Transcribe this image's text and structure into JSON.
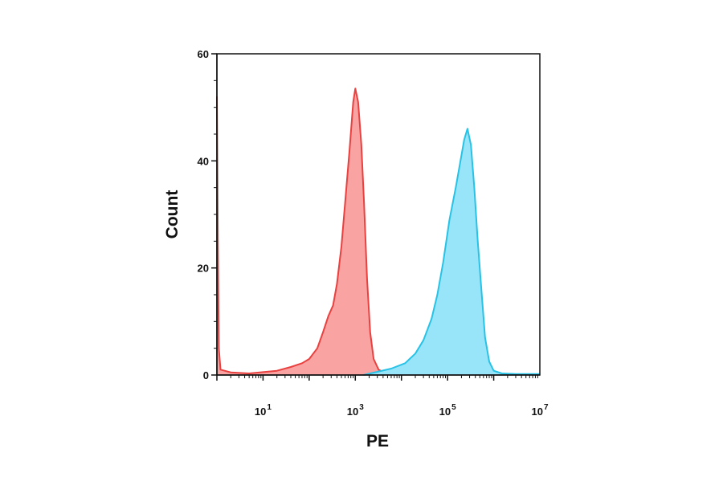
{
  "chart_data": {
    "type": "area",
    "xlabel": "PE",
    "ylabel": "Count",
    "x_scale": "log10",
    "xlim": [
      1,
      10000000
    ],
    "ylim": [
      0,
      60
    ],
    "grid": false,
    "legend": "none",
    "y_ticks": [
      {
        "value": 0,
        "label": "0"
      },
      {
        "value": 20,
        "label": "20"
      },
      {
        "value": 40,
        "label": "40"
      },
      {
        "value": 60,
        "label": "60"
      }
    ],
    "x_ticks": [
      {
        "value": 10,
        "base": "10",
        "exp": "1"
      },
      {
        "value": 1000,
        "base": "10",
        "exp": "3"
      },
      {
        "value": 100000,
        "base": "10",
        "exp": "5"
      },
      {
        "value": 10000000,
        "base": "10",
        "exp": "7"
      }
    ],
    "series": [
      {
        "fill": "#f9a3a3",
        "stroke": "#e8413f",
        "points": [
          [
            1.0,
            52
          ],
          [
            1.05,
            25
          ],
          [
            1.1,
            5
          ],
          [
            1.2,
            1
          ],
          [
            2,
            0.5
          ],
          [
            5,
            0.3
          ],
          [
            20,
            0.8
          ],
          [
            40,
            1.5
          ],
          [
            70,
            2.2
          ],
          [
            100,
            3.0
          ],
          [
            150,
            5.0
          ],
          [
            200,
            8.0
          ],
          [
            260,
            11.0
          ],
          [
            330,
            13.0
          ],
          [
            400,
            17.0
          ],
          [
            500,
            24.0
          ],
          [
            600,
            32.0
          ],
          [
            750,
            42.0
          ],
          [
            900,
            51.0
          ],
          [
            1000,
            53.5
          ],
          [
            1150,
            51.0
          ],
          [
            1350,
            43.0
          ],
          [
            1550,
            32.0
          ],
          [
            1800,
            18.0
          ],
          [
            2100,
            8.0
          ],
          [
            2500,
            3.0
          ],
          [
            3200,
            1.0
          ],
          [
            4500,
            0.3
          ],
          [
            8000,
            0.0
          ]
        ]
      },
      {
        "fill": "#98e5f9",
        "stroke": "#28c2e6",
        "points": [
          [
            1500,
            0.0
          ],
          [
            3000,
            0.6
          ],
          [
            6000,
            1.2
          ],
          [
            12000,
            2.2
          ],
          [
            20000,
            4.0
          ],
          [
            30000,
            6.5
          ],
          [
            45000,
            10.5
          ],
          [
            60000,
            15.0
          ],
          [
            80000,
            21.0
          ],
          [
            110000,
            29.0
          ],
          [
            150000,
            35.0
          ],
          [
            190000,
            40.0
          ],
          [
            230000,
            44.0
          ],
          [
            270000,
            46.0
          ],
          [
            320000,
            43.0
          ],
          [
            380000,
            35.0
          ],
          [
            450000,
            25.0
          ],
          [
            550000,
            15.0
          ],
          [
            650000,
            7.0
          ],
          [
            800000,
            2.5
          ],
          [
            1000000,
            0.8
          ],
          [
            1500000,
            0.3
          ],
          [
            3000000,
            0.2
          ],
          [
            10000000,
            0.2
          ]
        ]
      }
    ]
  }
}
